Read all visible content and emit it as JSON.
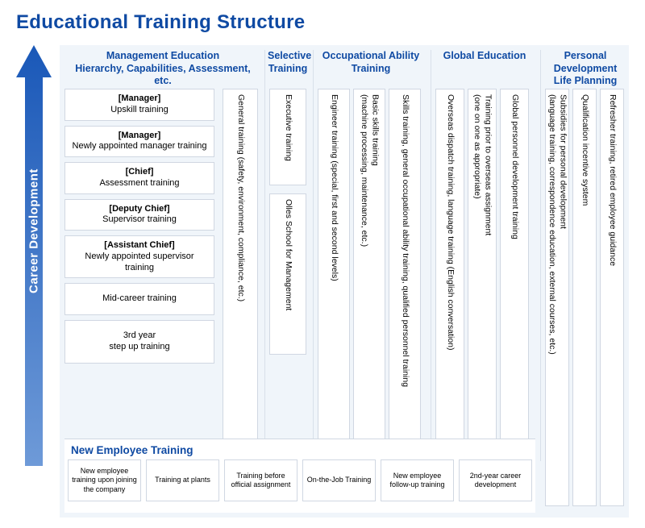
{
  "title": "Educational Training Structure",
  "colors": {
    "accent": "#0f4aa3",
    "panel_bg": "#f0f5fa",
    "box_border": "#d0d7e2",
    "arrow_fill": "#3a6fbf"
  },
  "arrow_label": "Career Development",
  "columns": {
    "c1": {
      "header": "Management Education\nHierarchy, Capabilities, Assessment, etc.",
      "roles": [
        {
          "role": "[Manager]",
          "label": "Upskill training"
        },
        {
          "role": "[Manager]",
          "label": "Newly appointed manager training"
        },
        {
          "role": "[Chief]",
          "label": "Assessment training"
        },
        {
          "role": "[Deputy Chief]",
          "label": "Supervisor training"
        },
        {
          "role": "[Assistant Chief]",
          "label": "Newly appointed supervisor training"
        },
        {
          "role": "",
          "label": "Mid-career training"
        },
        {
          "role": "",
          "label": "3rd year\nstep up training"
        }
      ],
      "vertical": "General training (safety, environment, compliance, etc.)"
    },
    "c2": {
      "header": "Selective Training",
      "items": [
        "Executive training",
        "Olles School for Management"
      ]
    },
    "c3": {
      "header": "Occupational Ability Training",
      "items": [
        "Engineer training (special, first and second levels)",
        "Basic skills training\n(machine processing, maintenance, etc.)",
        "Skills training, general occupational ability training, qualified personnel training"
      ]
    },
    "c4": {
      "header": "Global Education",
      "items": [
        "Overseas dispatch training, language training (English conversation)",
        "Training prior to overseas assignment\n(one on one as appropriate)",
        "Global personnel development training"
      ]
    },
    "c5": {
      "header": "Personal Development Life Planning",
      "items": [
        "Subsidies for personal development\n(language training, correspondence education, external courses, etc.)",
        "Qualification incentive system",
        "Refresher training, retired employee guidance"
      ]
    }
  },
  "new_employee": {
    "title": "New Employee Training",
    "boxes": [
      "New employee training upon joining the company",
      "Training at plants",
      "Training before official assignment",
      "On-the-Job Training",
      "New employee follow-up training",
      "2nd-year career development"
    ]
  }
}
